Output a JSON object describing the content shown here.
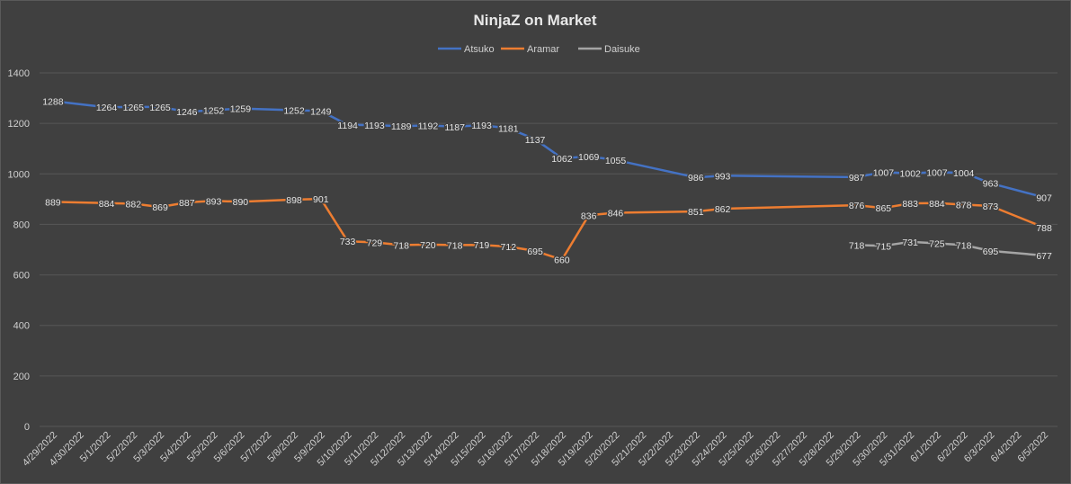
{
  "chart_data": {
    "type": "line",
    "title": "NinjaZ on Market",
    "xlabel": "",
    "ylabel": "",
    "ylim": [
      0,
      1400
    ],
    "yticks": [
      0,
      200,
      400,
      600,
      800,
      1000,
      1200,
      1400
    ],
    "grid": true,
    "legend_position": "top",
    "categories": [
      "4/29/2022",
      "4/30/2022",
      "5/1/2022",
      "5/2/2022",
      "5/3/2022",
      "5/4/2022",
      "5/5/2022",
      "5/6/2022",
      "5/7/2022",
      "5/8/2022",
      "5/9/2022",
      "5/10/2022",
      "5/11/2022",
      "5/12/2022",
      "5/13/2022",
      "5/14/2022",
      "5/15/2022",
      "5/16/2022",
      "5/17/2022",
      "5/18/2022",
      "5/19/2022",
      "5/20/2022",
      "5/21/2022",
      "5/22/2022",
      "5/23/2022",
      "5/24/2022",
      "5/25/2022",
      "5/26/2022",
      "5/27/2022",
      "5/28/2022",
      "5/29/2022",
      "5/30/2022",
      "5/31/2022",
      "6/1/2022",
      "6/2/2022",
      "6/3/2022",
      "6/4/2022",
      "6/5/2022"
    ],
    "series": [
      {
        "name": "Atsuko",
        "color": "#4472c4",
        "values": [
          1288,
          null,
          1264,
          1265,
          1265,
          1246,
          1252,
          1259,
          null,
          1252,
          1249,
          1194,
          1193,
          1189,
          1192,
          1187,
          1193,
          1181,
          1137,
          1062,
          1069,
          1055,
          null,
          null,
          986,
          993,
          null,
          null,
          null,
          null,
          987,
          1007,
          1002,
          1007,
          1004,
          963,
          null,
          907
        ]
      },
      {
        "name": "Aramar",
        "color": "#ed7d31",
        "values": [
          889,
          null,
          884,
          882,
          869,
          887,
          893,
          890,
          null,
          898,
          901,
          733,
          729,
          718,
          720,
          718,
          719,
          712,
          695,
          660,
          836,
          846,
          null,
          null,
          851,
          862,
          null,
          null,
          null,
          null,
          876,
          865,
          883,
          884,
          878,
          873,
          null,
          788
        ]
      },
      {
        "name": "Daisuke",
        "color": "#a5a5a5",
        "values": [
          null,
          null,
          null,
          null,
          null,
          null,
          null,
          null,
          null,
          null,
          null,
          null,
          null,
          null,
          null,
          null,
          null,
          null,
          null,
          null,
          null,
          null,
          null,
          null,
          null,
          null,
          null,
          null,
          null,
          null,
          718,
          715,
          731,
          725,
          718,
          695,
          null,
          677
        ]
      }
    ]
  }
}
